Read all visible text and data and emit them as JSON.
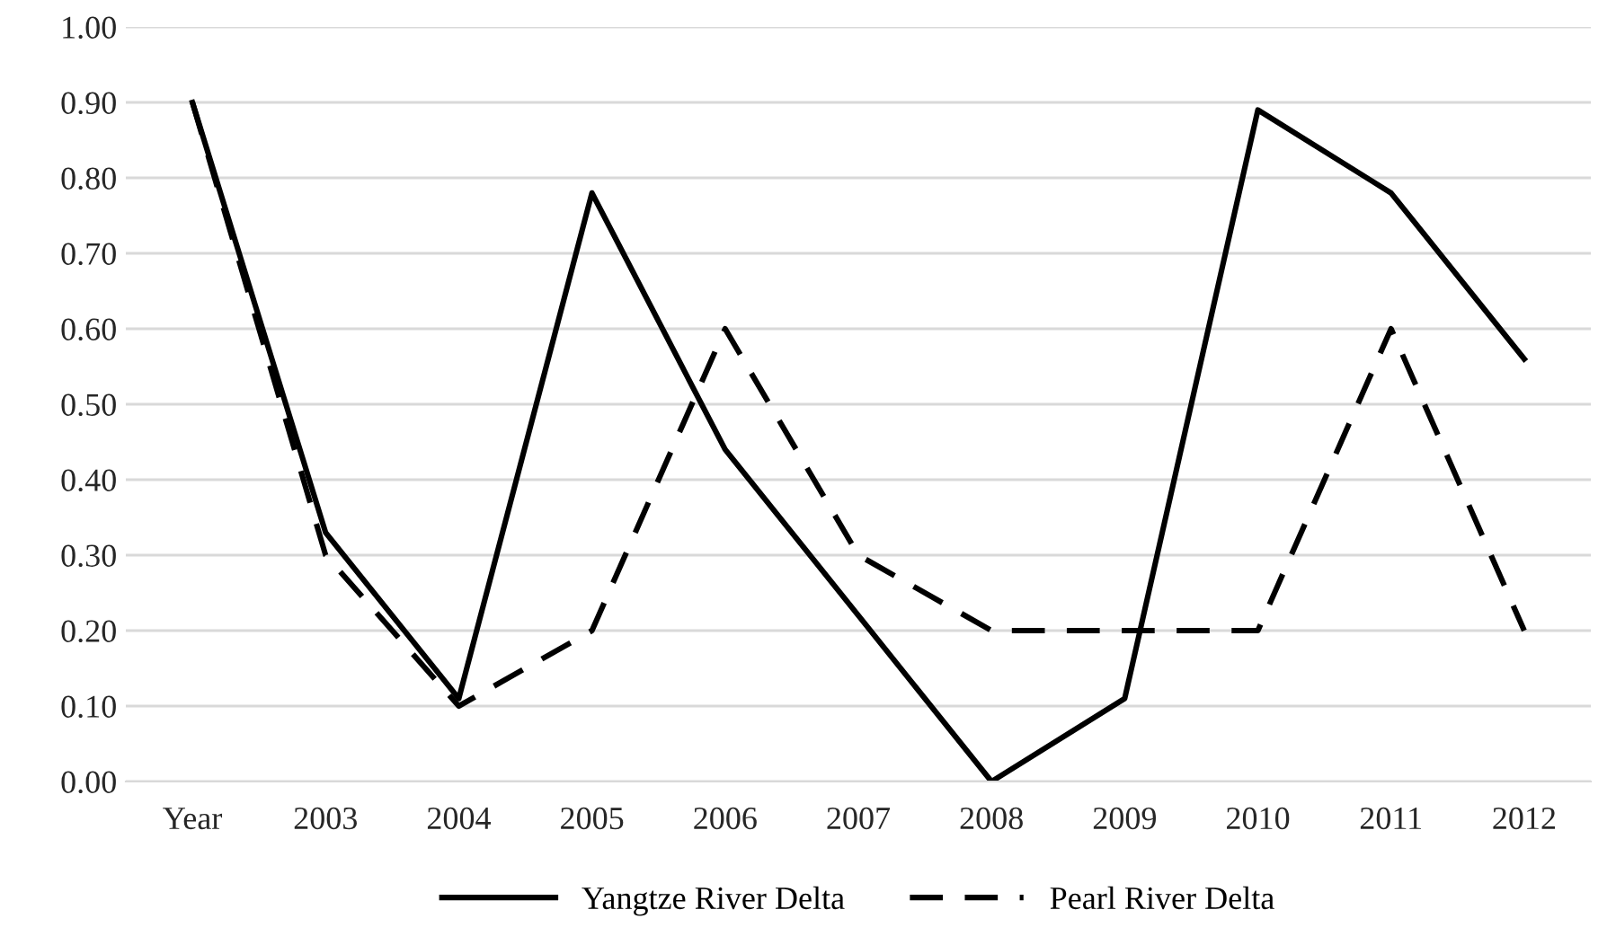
{
  "chart_data": {
    "type": "line",
    "categories": [
      "Year",
      "2003",
      "2004",
      "2005",
      "2006",
      "2007",
      "2008",
      "2009",
      "2010",
      "2011",
      "2012"
    ],
    "series": [
      {
        "name": "Yangtze River Delta",
        "color": "#000000",
        "line_style": "solid",
        "values": [
          0.9,
          0.33,
          0.11,
          0.78,
          0.44,
          0.22,
          0.0,
          0.11,
          0.89,
          0.78,
          0.56
        ]
      },
      {
        "name": "Pearl River Delta",
        "color": "#000000",
        "line_style": "dashed",
        "values": [
          0.9,
          0.3,
          0.1,
          0.2,
          0.6,
          0.3,
          0.2,
          0.2,
          0.2,
          0.6,
          0.2
        ]
      }
    ],
    "ylim": [
      0,
      1
    ],
    "yticks": [
      {
        "value": 0,
        "label": "0.00"
      },
      {
        "value": 0.1,
        "label": "0.10"
      },
      {
        "value": 0.2,
        "label": "0.20"
      },
      {
        "value": 0.3,
        "label": "0.30"
      },
      {
        "value": 0.4,
        "label": "0.40"
      },
      {
        "value": 0.5,
        "label": "0.50"
      },
      {
        "value": 0.6,
        "label": "0.60"
      },
      {
        "value": 0.7,
        "label": "0.70"
      },
      {
        "value": 0.8,
        "label": "0.80"
      },
      {
        "value": 0.9,
        "label": "0.90"
      },
      {
        "value": 1,
        "label": "1.00"
      }
    ],
    "grid": "y",
    "legend": "bottom",
    "marker": "none"
  }
}
